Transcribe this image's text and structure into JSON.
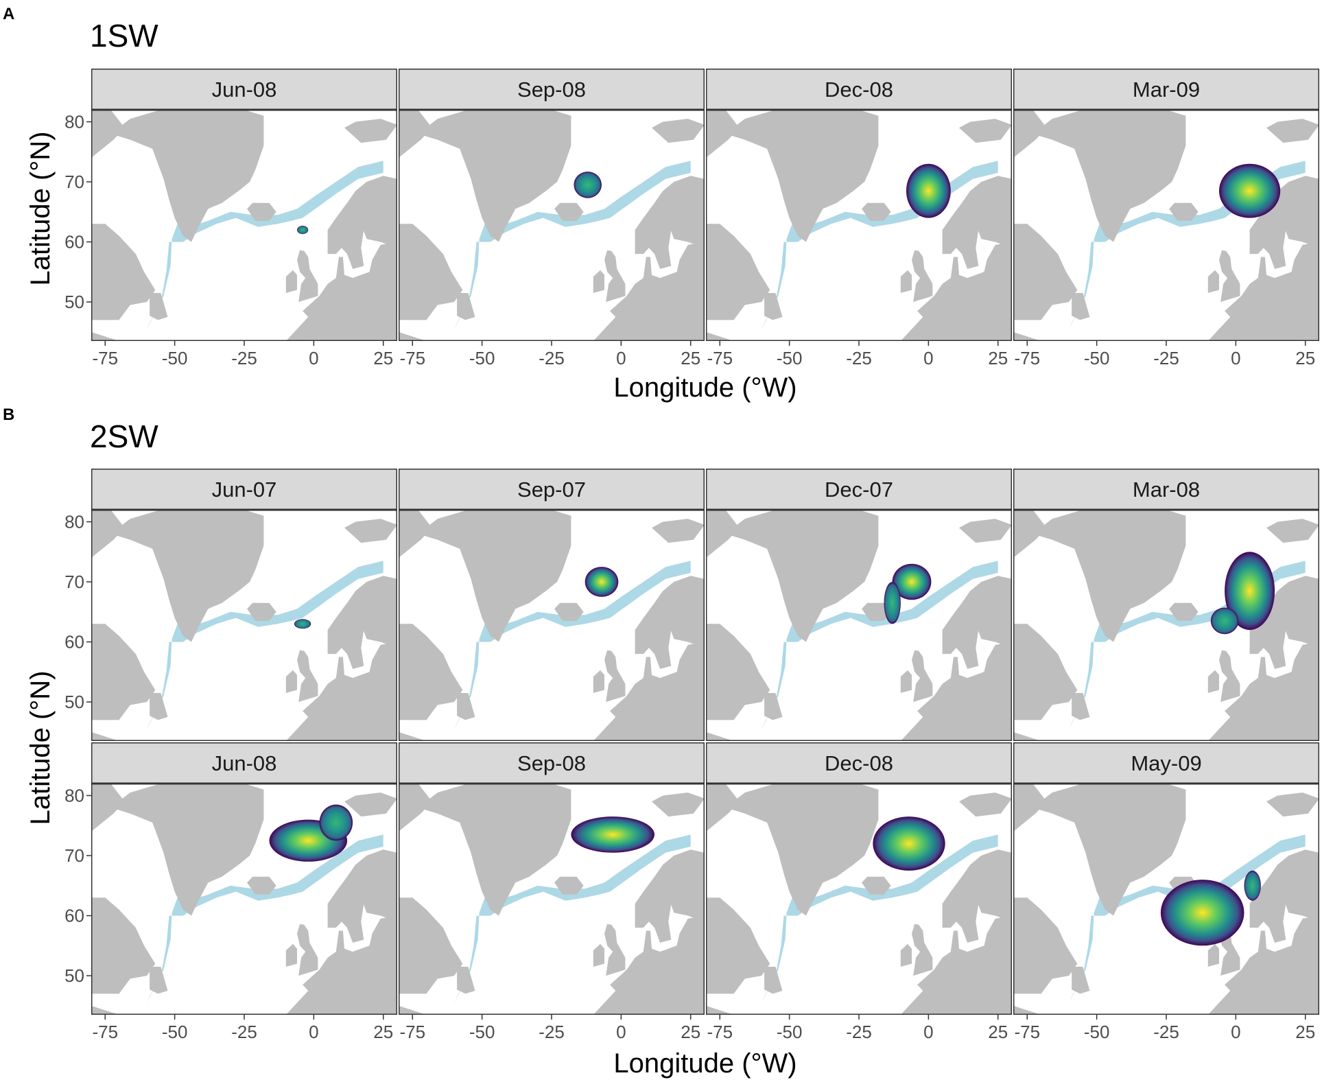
{
  "figure": {
    "panels": [
      {
        "letter": "A",
        "title": "1SW",
        "rows": [
          [
            {
              "label": "Jun-08",
              "blobs": [
                {
                  "lon": -4,
                  "lat": 62,
                  "rx": 2,
                  "ry": 0.7,
                  "intensity": 0.6
                }
              ]
            },
            {
              "label": "Sep-08",
              "blobs": [
                {
                  "lon": -12,
                  "lat": 69.5,
                  "rx": 5,
                  "ry": 2.2,
                  "intensity": 0.7
                }
              ]
            },
            {
              "label": "Dec-08",
              "blobs": [
                {
                  "lon": 0,
                  "lat": 68.5,
                  "rx": 8,
                  "ry": 4.5,
                  "intensity": 0.75
                }
              ]
            },
            {
              "label": "Mar-09",
              "blobs": [
                {
                  "lon": 5,
                  "lat": 68.5,
                  "rx": 11,
                  "ry": 4.5,
                  "intensity": 0.8
                }
              ]
            }
          ]
        ],
        "x_title": "Longitude (°W)",
        "y_title": "Latitude (°N)"
      },
      {
        "letter": "B",
        "title": "2SW",
        "rows": [
          [
            {
              "label": "Jun-07",
              "blobs": [
                {
                  "lon": -4,
                  "lat": 63,
                  "rx": 3,
                  "ry": 0.8,
                  "intensity": 0.6
                }
              ]
            },
            {
              "label": "Sep-07",
              "blobs": [
                {
                  "lon": -7,
                  "lat": 70,
                  "rx": 6,
                  "ry": 2.5,
                  "intensity": 0.85
                }
              ]
            },
            {
              "label": "Dec-07",
              "blobs": [
                {
                  "lon": -6,
                  "lat": 70,
                  "rx": 7,
                  "ry": 3,
                  "intensity": 0.8
                },
                {
                  "lon": -13,
                  "lat": 66.5,
                  "rx": 3,
                  "ry": 3.5,
                  "intensity": 0.7
                }
              ]
            },
            {
              "label": "Mar-08",
              "blobs": [
                {
                  "lon": 5,
                  "lat": 68.5,
                  "rx": 9,
                  "ry": 6.5,
                  "intensity": 0.85
                },
                {
                  "lon": -4,
                  "lat": 63.5,
                  "rx": 5,
                  "ry": 2.2,
                  "intensity": 0.7
                }
              ]
            }
          ],
          [
            {
              "label": "Jun-08",
              "blobs": [
                {
                  "lon": -2,
                  "lat": 72.5,
                  "rx": 14,
                  "ry": 3.5,
                  "intensity": 0.9
                },
                {
                  "lon": 8,
                  "lat": 75.5,
                  "rx": 6,
                  "ry": 3,
                  "intensity": 0.6
                }
              ]
            },
            {
              "label": "Sep-08",
              "blobs": [
                {
                  "lon": -3,
                  "lat": 73.5,
                  "rx": 15,
                  "ry": 3,
                  "intensity": 0.85
                }
              ]
            },
            {
              "label": "Dec-08",
              "blobs": [
                {
                  "lon": -7,
                  "lat": 72,
                  "rx": 13,
                  "ry": 4.5,
                  "intensity": 0.9
                }
              ]
            },
            {
              "label": "May-09",
              "blobs": [
                {
                  "lon": -12,
                  "lat": 60.5,
                  "rx": 15,
                  "ry": 5.5,
                  "intensity": 0.95
                },
                {
                  "lon": 6,
                  "lat": 65,
                  "rx": 3,
                  "ry": 2.5,
                  "intensity": 0.6
                }
              ]
            }
          ]
        ],
        "x_title": "Longitude (°W)",
        "y_title": "Latitude (°N)"
      }
    ],
    "x_ticks": [
      -75,
      -50,
      -25,
      0,
      25
    ],
    "y_ticks": [
      50,
      60,
      70,
      80
    ],
    "x_range": [
      -80,
      30
    ],
    "y_range": [
      43.5,
      82
    ],
    "colors": {
      "land": "#bebebe",
      "ocean": "#ffffff",
      "habitat": "#add8e6",
      "strip": "#d9d9d9",
      "frame": "#333333",
      "density_low": "#440154",
      "density_mid": "#21918c",
      "density_high": "#fde725"
    }
  }
}
